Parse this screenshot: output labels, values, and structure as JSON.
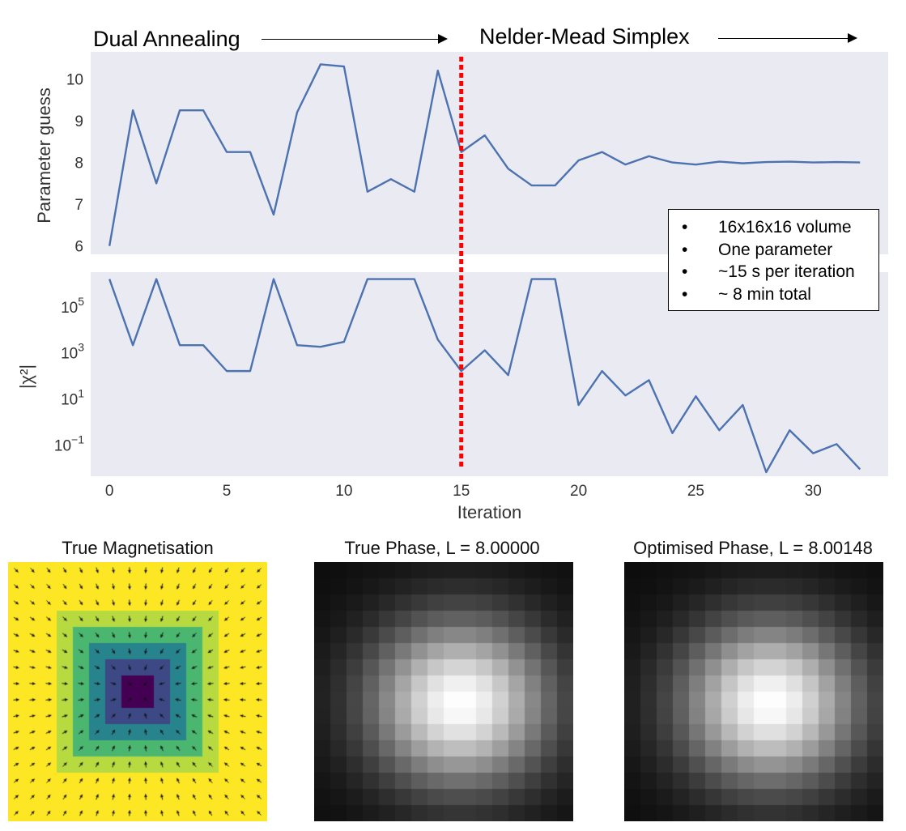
{
  "headers": {
    "left": "Dual Annealing",
    "right": "Nelder-Mead Simplex"
  },
  "info_box": {
    "items": [
      "16x16x16 volume",
      "One parameter",
      "~15 s per iteration",
      "~ 8 min total"
    ],
    "bullet": "•"
  },
  "panels": {
    "magnetisation_title": "True Magnetisation",
    "true_phase_title": "True Phase, L = 8.00000",
    "optimised_phase_title": "Optimised Phase, L = 8.00148",
    "grid_size": 16,
    "colormap_magnetisation": "viridis",
    "colormap_phase": "gray"
  },
  "chart_data": [
    {
      "type": "line",
      "title": "",
      "xlabel": "",
      "ylabel": "Parameter guess",
      "x": [
        0,
        1,
        2,
        3,
        4,
        5,
        6,
        7,
        8,
        9,
        10,
        11,
        12,
        13,
        14,
        15,
        16,
        17,
        18,
        19,
        20,
        21,
        22,
        23,
        24,
        25,
        26,
        27,
        28,
        29,
        30,
        31,
        32
      ],
      "series": [
        {
          "values": [
            6.0,
            9.25,
            7.5,
            9.25,
            9.25,
            8.25,
            8.25,
            6.75,
            9.2,
            10.35,
            10.3,
            7.3,
            7.6,
            7.3,
            10.2,
            8.25,
            8.65,
            7.85,
            7.45,
            7.45,
            8.05,
            8.25,
            7.95,
            8.15,
            8.0,
            7.95,
            8.02,
            7.98,
            8.01,
            8.02,
            8.0,
            8.01,
            8.0
          ]
        }
      ],
      "xlim": [
        -0.8,
        33.2
      ],
      "ylim": [
        5.8,
        10.65
      ],
      "yticks": [
        6,
        7,
        8,
        9,
        10
      ],
      "line_color": "#4c72b0",
      "background": "#eaeaf2",
      "grid": false
    },
    {
      "type": "line",
      "title": "",
      "xlabel": "Iteration",
      "ylabel": "|χ²|",
      "yscale": "log",
      "x": [
        0,
        1,
        2,
        3,
        4,
        5,
        6,
        7,
        8,
        9,
        10,
        11,
        12,
        13,
        14,
        15,
        16,
        17,
        18,
        19,
        20,
        21,
        22,
        23,
        24,
        25,
        26,
        27,
        28,
        29,
        30,
        31,
        32
      ],
      "series": [
        {
          "values": [
            1500000,
            2000,
            1500000,
            2000,
            2000,
            150,
            150,
            1500000,
            2000,
            1700,
            2800,
            1500000,
            1500000,
            1500000,
            3500,
            150,
            1200,
            100,
            1500000,
            1500000,
            5,
            150,
            13,
            60,
            0.3,
            12,
            0.4,
            5,
            0.006,
            0.4,
            0.04,
            0.1,
            0.008
          ]
        }
      ],
      "xticks": [
        0,
        5,
        10,
        15,
        20,
        25,
        30
      ],
      "yticks": [
        "10^-1",
        "10^1",
        "10^3",
        "10^5"
      ],
      "xlim": [
        -0.8,
        33.2
      ],
      "ylim": [
        0.004,
        3000000
      ],
      "line_color": "#4c72b0",
      "background": "#eaeaf2",
      "grid": false
    }
  ],
  "divider": {
    "x": 15,
    "color": "#ff0000",
    "style": "dotted"
  }
}
